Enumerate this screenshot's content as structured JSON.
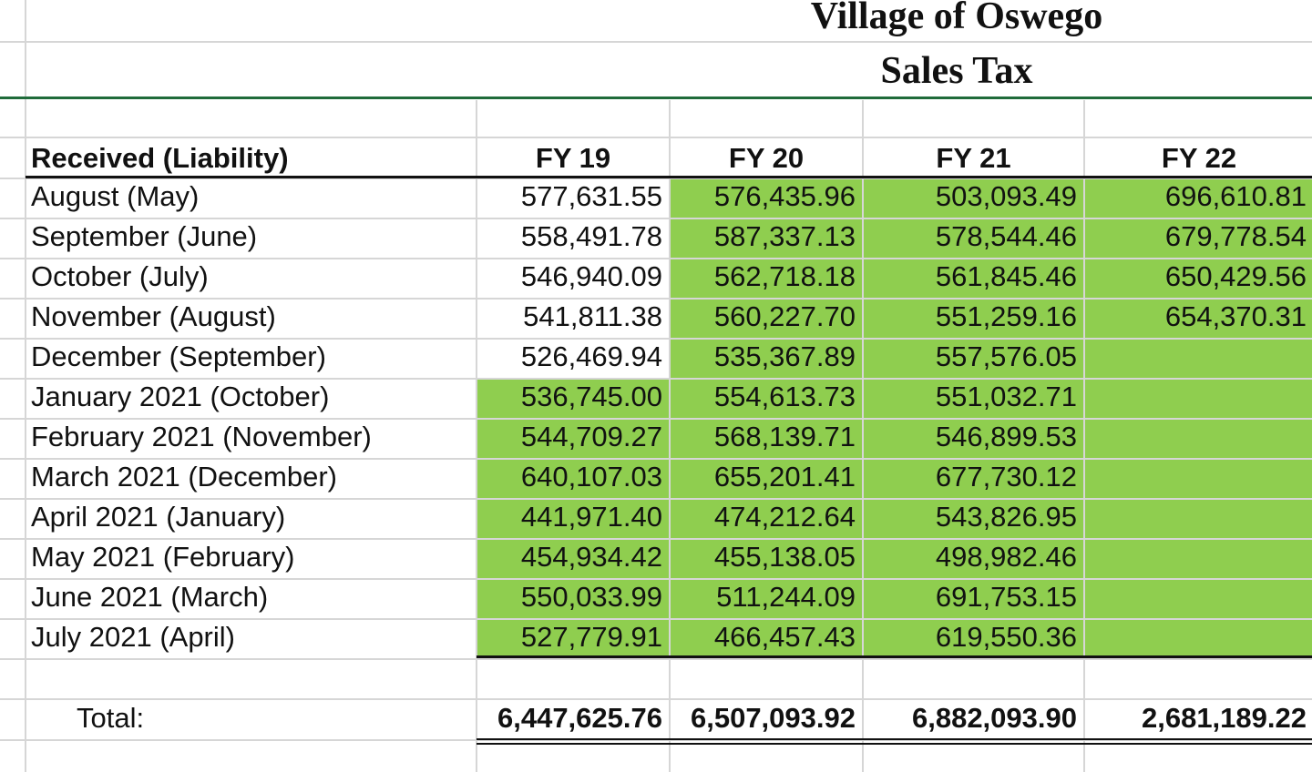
{
  "title": "Village of Oswego",
  "subtitle": "Sales Tax",
  "header": {
    "label": "Received (Liability)",
    "columns": [
      "FY 19",
      "FY 20",
      "FY 21",
      "FY 22"
    ]
  },
  "fill_color": "#8fce4f",
  "rows": [
    {
      "label": "August (May)",
      "values": [
        "577,631.55",
        "576,435.96",
        "503,093.49",
        "696,610.81"
      ]
    },
    {
      "label": "September (June)",
      "values": [
        "558,491.78",
        "587,337.13",
        "578,544.46",
        "679,778.54"
      ]
    },
    {
      "label": "October (July)",
      "values": [
        "546,940.09",
        "562,718.18",
        "561,845.46",
        "650,429.56"
      ]
    },
    {
      "label": "November (August)",
      "values": [
        "541,811.38",
        "560,227.70",
        "551,259.16",
        "654,370.31"
      ]
    },
    {
      "label": "December (September)",
      "values": [
        "526,469.94",
        "535,367.89",
        "557,576.05",
        ""
      ]
    },
    {
      "label": "January 2021 (October)",
      "values": [
        "536,745.00",
        "554,613.73",
        "551,032.71",
        ""
      ]
    },
    {
      "label": "February 2021 (November)",
      "values": [
        "544,709.27",
        "568,139.71",
        "546,899.53",
        ""
      ]
    },
    {
      "label": "March 2021 (December)",
      "values": [
        "640,107.03",
        "655,201.41",
        "677,730.12",
        ""
      ]
    },
    {
      "label": "April 2021 (January)",
      "values": [
        "441,971.40",
        "474,212.64",
        "543,826.95",
        ""
      ]
    },
    {
      "label": "May 2021 (February)",
      "values": [
        "454,934.42",
        "455,138.05",
        "498,982.46",
        ""
      ]
    },
    {
      "label": "June 2021 (March)",
      "values": [
        "550,033.99",
        "511,244.09",
        "691,753.15",
        ""
      ]
    },
    {
      "label": "July 2021 (April)",
      "values": [
        "527,779.91",
        "466,457.43",
        "619,550.36",
        ""
      ]
    }
  ],
  "total": {
    "label": "Total:",
    "values": [
      "6,447,625.76",
      "6,507,093.92",
      "6,882,093.90",
      "2,681,189.22"
    ]
  }
}
